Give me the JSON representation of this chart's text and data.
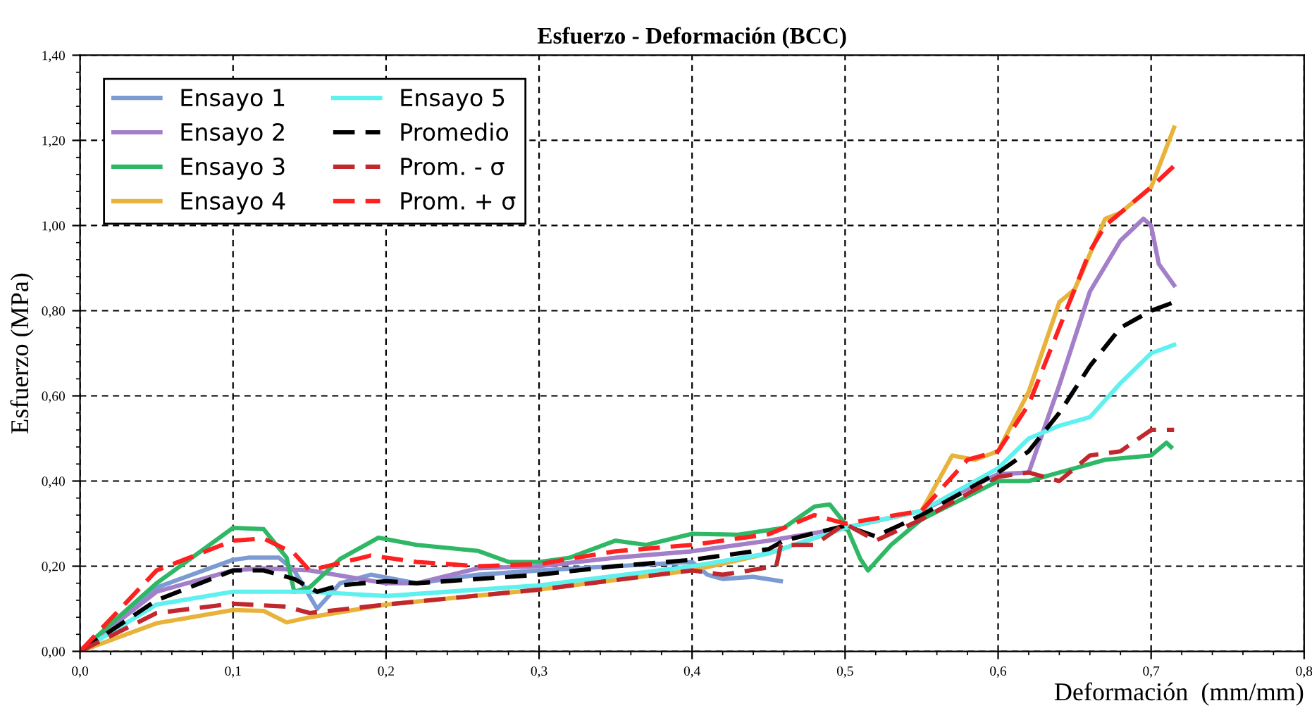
{
  "chart_data": {
    "type": "line",
    "title": "Esfuerzo - Deformación (BCC)",
    "xlabel": "Deformación  (mm/mm)",
    "ylabel": "Esfuerzo (MPa)",
    "xlim": [
      0,
      0.8
    ],
    "ylim": [
      0,
      1.4
    ],
    "xticks": [
      {
        "value": 0,
        "label": "0,0"
      },
      {
        "value": 0.1,
        "label": "0,1"
      },
      {
        "value": 0.2,
        "label": "0,2"
      },
      {
        "value": 0.3,
        "label": "0,3"
      },
      {
        "value": 0.4,
        "label": "0,4"
      },
      {
        "value": 0.5,
        "label": "0,5"
      },
      {
        "value": 0.6,
        "label": "0,6"
      },
      {
        "value": 0.7,
        "label": "0,7"
      },
      {
        "value": 0.8,
        "label": "0,8"
      }
    ],
    "yticks": [
      {
        "value": 0,
        "label": "0,00"
      },
      {
        "value": 0.2,
        "label": "0,20"
      },
      {
        "value": 0.4,
        "label": "0,40"
      },
      {
        "value": 0.6,
        "label": "0,60"
      },
      {
        "value": 0.8,
        "label": "0,80"
      },
      {
        "value": 1.0,
        "label": "1,00"
      },
      {
        "value": 1.2,
        "label": "1,20"
      },
      {
        "value": 1.4,
        "label": "1,40"
      }
    ],
    "grid": true,
    "legend": "top left",
    "marker": "none",
    "series": [
      {
        "name": "Ensayo 1",
        "color": "#7b9bd2",
        "line_style": "solid",
        "x": [
          0,
          0.05,
          0.1,
          0.11,
          0.13,
          0.14,
          0.155,
          0.17,
          0.19,
          0.22,
          0.26,
          0.3,
          0.35,
          0.4,
          0.41,
          0.42,
          0.44,
          0.458
        ],
        "values": [
          0,
          0.15,
          0.215,
          0.22,
          0.22,
          0.19,
          0.1,
          0.16,
          0.18,
          0.16,
          0.18,
          0.19,
          0.2,
          0.21,
          0.18,
          0.17,
          0.175,
          0.165
        ]
      },
      {
        "name": "Ensayo 2",
        "color": "#a27fc8",
        "line_style": "solid",
        "x": [
          0,
          0.05,
          0.1,
          0.12,
          0.15,
          0.2,
          0.22,
          0.26,
          0.3,
          0.35,
          0.4,
          0.45,
          0.5,
          0.55,
          0.6,
          0.62,
          0.64,
          0.66,
          0.68,
          0.695,
          0.7,
          0.705,
          0.715
        ],
        "values": [
          0,
          0.14,
          0.19,
          0.195,
          0.19,
          0.16,
          0.16,
          0.195,
          0.2,
          0.22,
          0.235,
          0.26,
          0.29,
          0.33,
          0.416,
          0.42,
          0.625,
          0.845,
          0.965,
          1.016,
          1.0,
          0.91,
          0.86
        ]
      },
      {
        "name": "Ensayo 3",
        "color": "#2eb866",
        "line_style": "solid",
        "x": [
          0,
          0.05,
          0.1,
          0.12,
          0.135,
          0.14,
          0.15,
          0.17,
          0.195,
          0.22,
          0.26,
          0.28,
          0.3,
          0.32,
          0.35,
          0.37,
          0.4,
          0.43,
          0.46,
          0.48,
          0.49,
          0.5,
          0.51,
          0.515,
          0.53,
          0.55,
          0.6,
          0.62,
          0.65,
          0.67,
          0.7,
          0.71,
          0.713
        ],
        "values": [
          0,
          0.16,
          0.29,
          0.287,
          0.22,
          0.14,
          0.15,
          0.217,
          0.267,
          0.25,
          0.236,
          0.21,
          0.21,
          0.22,
          0.26,
          0.25,
          0.276,
          0.274,
          0.29,
          0.34,
          0.345,
          0.3,
          0.217,
          0.19,
          0.25,
          0.31,
          0.4,
          0.4,
          0.43,
          0.45,
          0.46,
          0.49,
          0.48
        ]
      },
      {
        "name": "Ensayo 4",
        "color": "#e8b33a",
        "line_style": "solid",
        "x": [
          0,
          0.05,
          0.1,
          0.12,
          0.135,
          0.15,
          0.2,
          0.3,
          0.4,
          0.45,
          0.5,
          0.55,
          0.57,
          0.585,
          0.6,
          0.62,
          0.64,
          0.65,
          0.67,
          0.68,
          0.7,
          0.715
        ],
        "values": [
          0,
          0.066,
          0.097,
          0.095,
          0.068,
          0.08,
          0.11,
          0.145,
          0.19,
          0.23,
          0.29,
          0.33,
          0.46,
          0.45,
          0.47,
          0.61,
          0.82,
          0.85,
          1.016,
          1.03,
          1.09,
          1.23
        ]
      },
      {
        "name": "Ensayo 5",
        "color": "#5ff0f0",
        "line_style": "solid",
        "x": [
          0,
          0.05,
          0.1,
          0.15,
          0.2,
          0.3,
          0.4,
          0.45,
          0.5,
          0.55,
          0.6,
          0.62,
          0.64,
          0.66,
          0.68,
          0.7,
          0.715
        ],
        "values": [
          0,
          0.11,
          0.14,
          0.14,
          0.13,
          0.155,
          0.2,
          0.23,
          0.29,
          0.33,
          0.43,
          0.5,
          0.53,
          0.55,
          0.63,
          0.7,
          0.72
        ]
      },
      {
        "name": "Promedio",
        "color": "#000000",
        "line_style": "dashed",
        "x": [
          0,
          0.05,
          0.1,
          0.12,
          0.14,
          0.155,
          0.17,
          0.2,
          0.22,
          0.3,
          0.35,
          0.4,
          0.45,
          0.46,
          0.5,
          0.52,
          0.55,
          0.6,
          0.62,
          0.64,
          0.66,
          0.68,
          0.7,
          0.715
        ],
        "values": [
          0,
          0.12,
          0.19,
          0.19,
          0.17,
          0.14,
          0.155,
          0.165,
          0.16,
          0.18,
          0.2,
          0.215,
          0.24,
          0.26,
          0.295,
          0.27,
          0.32,
          0.42,
          0.47,
          0.56,
          0.67,
          0.76,
          0.8,
          0.82
        ]
      },
      {
        "name": "Prom. - σ",
        "color": "#c0282d",
        "line_style": "dashed",
        "x": [
          0,
          0.05,
          0.1,
          0.135,
          0.15,
          0.2,
          0.3,
          0.4,
          0.42,
          0.455,
          0.458,
          0.48,
          0.5,
          0.52,
          0.55,
          0.6,
          0.62,
          0.64,
          0.66,
          0.68,
          0.7,
          0.715
        ],
        "values": [
          0,
          0.09,
          0.112,
          0.105,
          0.09,
          0.11,
          0.145,
          0.19,
          0.18,
          0.2,
          0.25,
          0.25,
          0.3,
          0.26,
          0.31,
          0.41,
          0.42,
          0.4,
          0.46,
          0.47,
          0.52,
          0.52
        ]
      },
      {
        "name": "Prom. + σ",
        "color": "#ff2020",
        "line_style": "dashed",
        "x": [
          0,
          0.05,
          0.1,
          0.12,
          0.14,
          0.15,
          0.19,
          0.22,
          0.26,
          0.3,
          0.35,
          0.4,
          0.45,
          0.48,
          0.5,
          0.55,
          0.58,
          0.6,
          0.62,
          0.64,
          0.66,
          0.67,
          0.7,
          0.715
        ],
        "values": [
          0,
          0.19,
          0.26,
          0.265,
          0.23,
          0.19,
          0.225,
          0.21,
          0.2,
          0.205,
          0.235,
          0.25,
          0.275,
          0.32,
          0.3,
          0.33,
          0.45,
          0.47,
          0.58,
          0.76,
          0.94,
          1.0,
          1.09,
          1.14
        ]
      }
    ]
  }
}
